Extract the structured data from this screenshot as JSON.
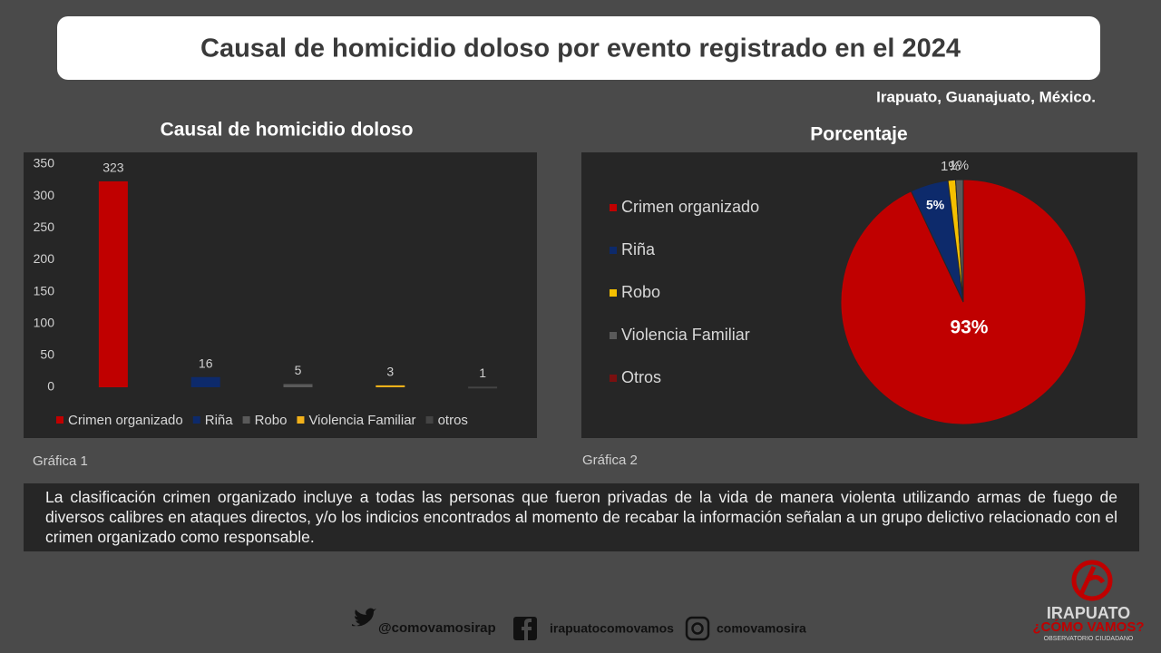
{
  "header": {
    "title": "Causal de homicidio doloso por evento registrado en el 2024",
    "location": "Irapuato, Guanajuato, México."
  },
  "chart_data": [
    {
      "type": "bar",
      "title": "Causal de homicidio doloso",
      "caption": "Gráfica 1",
      "categories": [
        "Crimen organizado",
        "Riña",
        "Robo",
        "Violencia Familiar",
        "otros"
      ],
      "values": [
        323,
        16,
        5,
        3,
        1
      ],
      "colors": [
        "#c00000",
        "#0d2a6b",
        "#5a5a5a",
        "#f2b11a",
        "#444444"
      ],
      "ylim": [
        0,
        350
      ],
      "yticks": [
        0,
        50,
        100,
        150,
        200,
        250,
        300,
        350
      ],
      "grid": false,
      "legend": "bottom"
    },
    {
      "type": "pie",
      "title": "Porcentaje",
      "caption": "Gráfica 2",
      "categories": [
        "Crimen organizado",
        "Riña",
        "Robo",
        "Violencia Familiar",
        "Otros"
      ],
      "values": [
        93,
        5,
        1,
        1,
        0
      ],
      "value_labels": [
        "93%",
        "5%",
        "1%",
        "1%",
        null
      ],
      "colors": [
        "#c00000",
        "#0d2a6b",
        "#f5c000",
        "#5a5a5a",
        "#7a1010"
      ],
      "legend": "left"
    }
  ],
  "note": "La clasificación crimen organizado incluye a todas las personas que fueron privadas de la vida de manera violenta utilizando armas de fuego de diversos calibres en ataques directos, y/o los indicios encontrados al momento de recabar la información señalan a un grupo delictivo relacionado con el crimen organizado como responsable.",
  "footer": {
    "twitter": "@comovamosirap",
    "facebook": "irapuatocomovamos",
    "instagram": "comovamosira",
    "logo": {
      "name": "IRAPUATO",
      "tagline": "¿CÓMO VAMOS?",
      "subtitle": "OBSERVATORIO CIUDADANO"
    }
  }
}
